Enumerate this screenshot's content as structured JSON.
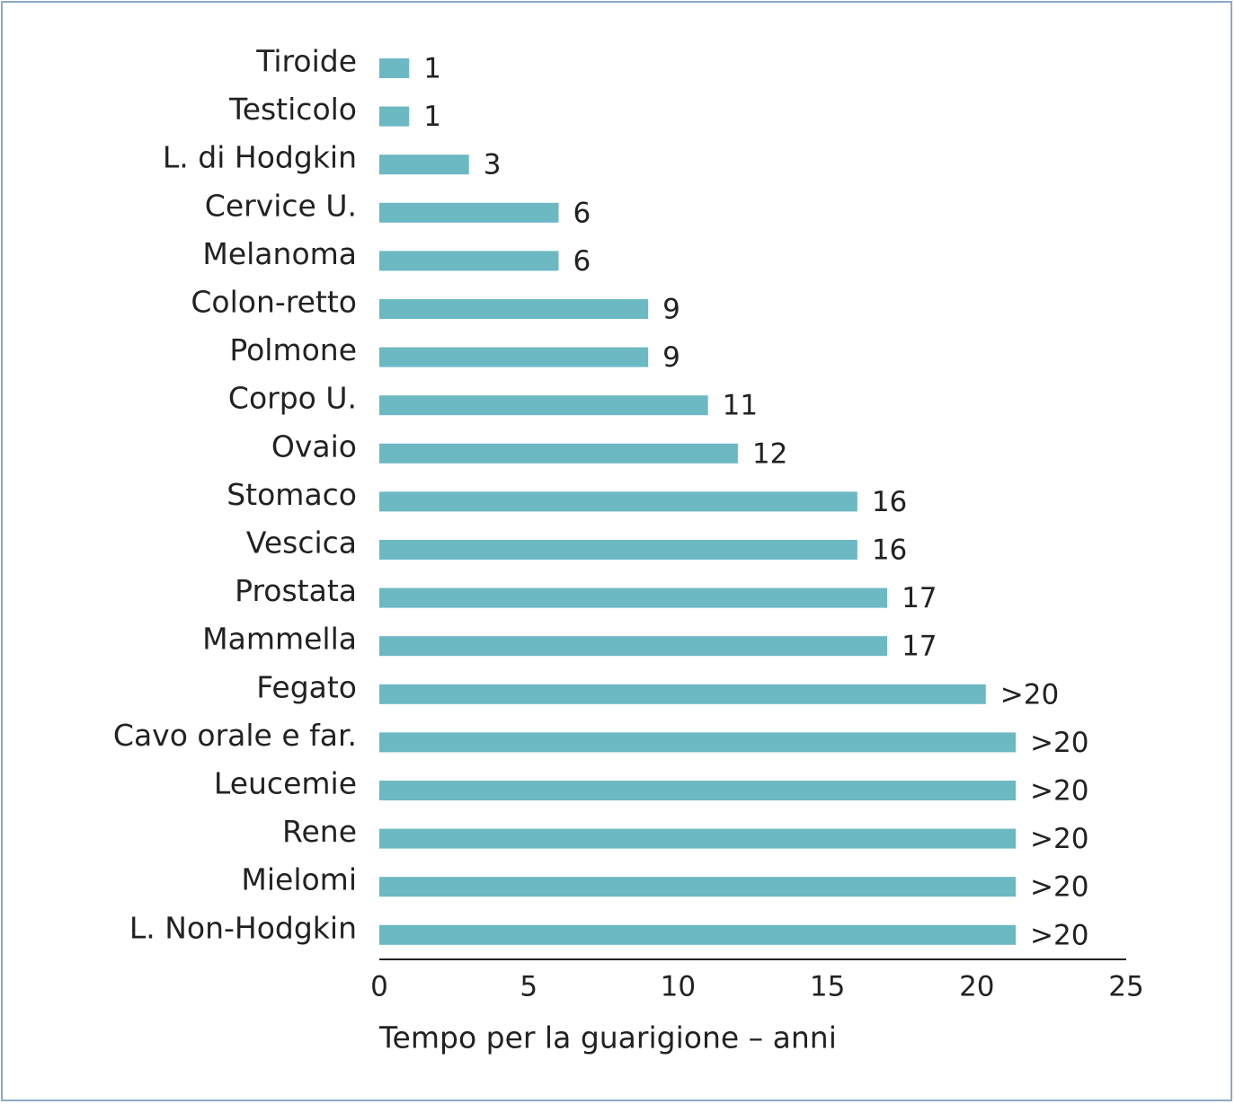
{
  "chart_data": {
    "type": "barh",
    "categories": [
      "Tiroide",
      "Testicolo",
      "L. di Hodgkin",
      "Cervice U.",
      "Melanoma",
      "Colon-retto",
      "Polmone",
      "Corpo U.",
      "Ovaio",
      "Stomaco",
      "Vescica",
      "Prostata",
      "Mammella",
      "Fegato",
      "Cavo orale e far.",
      "Leucemie",
      "Rene",
      "Mielomi",
      "L. Non-Hodgkin"
    ],
    "values": [
      1,
      1,
      3,
      6,
      6,
      9,
      9,
      11,
      12,
      16,
      16,
      17,
      17,
      20.3,
      21.3,
      21.3,
      21.3,
      21.3,
      21.3
    ],
    "value_labels": [
      "1",
      "1",
      "3",
      "6",
      "6",
      "9",
      "9",
      "11",
      "12",
      "16",
      "16",
      "17",
      "17",
      ">20",
      ">20",
      ">20",
      ">20",
      ">20",
      ">20"
    ],
    "color": "#6cb8c3",
    "xlabel": "Tempo per la guarigione – anni",
    "xlim": [
      0,
      25
    ],
    "xticks": [
      0,
      5,
      10,
      15,
      20,
      25
    ],
    "grid": false
  }
}
